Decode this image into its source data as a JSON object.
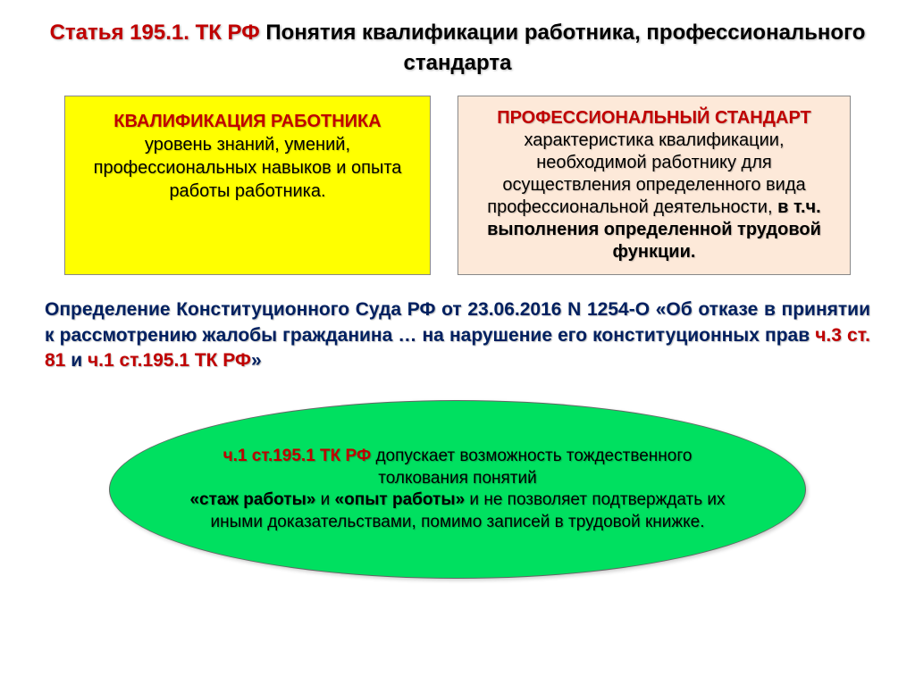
{
  "title": {
    "red_part": "Статья 195.1. ТК РФ",
    "black_part": "Понятия квалификации работника, профессионального стандарта"
  },
  "box_left": {
    "heading": "КВАЛИФИКАЦИЯ РАБОТНИКА",
    "body": "уровень знаний, умений, профессиональных навыков и опыта работы работника."
  },
  "box_right": {
    "heading": "ПРОФЕССИОНАЛЬНЫЙ СТАНДАРТ",
    "body1": "характеристика квалификации, необходимой работнику для осуществления определенного вида профессиональной деятельности, ",
    "body2_bold": "в т.ч. выполнения определенной трудовой функции."
  },
  "court": {
    "line1": "Определение Конституционного Суда РФ от 23.06.2016 N 1254-О «Об отказе в принятии к рассмотрению жалобы гражданина … на нарушение его конституционных прав ",
    "red1": "ч.3 ст. 81",
    "mid": " и ",
    "red2": "ч.1 ст.195.1 ТК РФ",
    "end": "»"
  },
  "oval": {
    "red1": "ч.1 ст.195.1 ТК РФ",
    "t1": " допускает возможность тождественного толкования понятий ",
    "b1": "«стаж работы»",
    "t2": " и ",
    "b2": "«опыт работы»",
    "t3": " и не позволяет подтверждать их иными доказательствами, помимо записей в трудовой книжке."
  },
  "colors": {
    "yellow": "#ffff00",
    "peach": "#fde9d9",
    "green": "#00e060",
    "red": "#c00000",
    "darkblue": "#002060"
  }
}
